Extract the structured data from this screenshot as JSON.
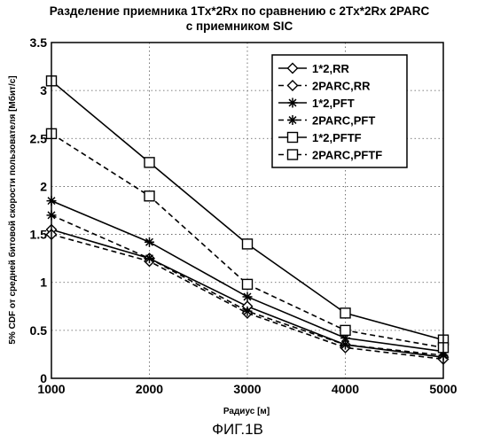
{
  "chart_data": {
    "type": "line",
    "title_line1": "Разделение приемника 1Tx*2Rx по сравнению с 2Tx*2Rx 2PARC",
    "title_line2": "с приемником SIC",
    "xlabel": "Радиус [м]",
    "ylabel": "5% CDF от средней битовой скорости пользователя [Мбит/с]",
    "x": [
      1000,
      2000,
      3000,
      4000,
      5000
    ],
    "x_ticks": [
      "1000",
      "2000",
      "3000",
      "4000",
      "5000"
    ],
    "y_ticks": [
      "0",
      "0.5",
      "1",
      "1.5",
      "2",
      "2.5",
      "3",
      "3.5"
    ],
    "xlim": [
      1000,
      5000
    ],
    "ylim": [
      0,
      3.5
    ],
    "grid": true,
    "legend_position": "top-right",
    "series": [
      {
        "name": "1*2,RR",
        "marker": "diamond",
        "dash": "solid",
        "values": [
          1.55,
          1.25,
          0.75,
          0.35,
          0.22
        ]
      },
      {
        "name": "2PARC,RR",
        "marker": "diamond",
        "dash": "dashed",
        "values": [
          1.5,
          1.22,
          0.68,
          0.32,
          0.2
        ]
      },
      {
        "name": "1*2,PFT",
        "marker": "asterisk",
        "dash": "solid",
        "values": [
          1.85,
          1.42,
          0.85,
          0.42,
          0.28
        ]
      },
      {
        "name": "2PARC,PFT",
        "marker": "asterisk",
        "dash": "dashed",
        "values": [
          1.7,
          1.25,
          0.7,
          0.35,
          0.24
        ]
      },
      {
        "name": "1*2,PFTF",
        "marker": "square",
        "dash": "solid",
        "values": [
          3.1,
          2.25,
          1.4,
          0.68,
          0.4
        ]
      },
      {
        "name": "2PARC,PFTF",
        "marker": "square",
        "dash": "dashed",
        "values": [
          2.55,
          1.9,
          0.98,
          0.5,
          0.32
        ]
      }
    ]
  },
  "caption": "ФИГ.1В"
}
